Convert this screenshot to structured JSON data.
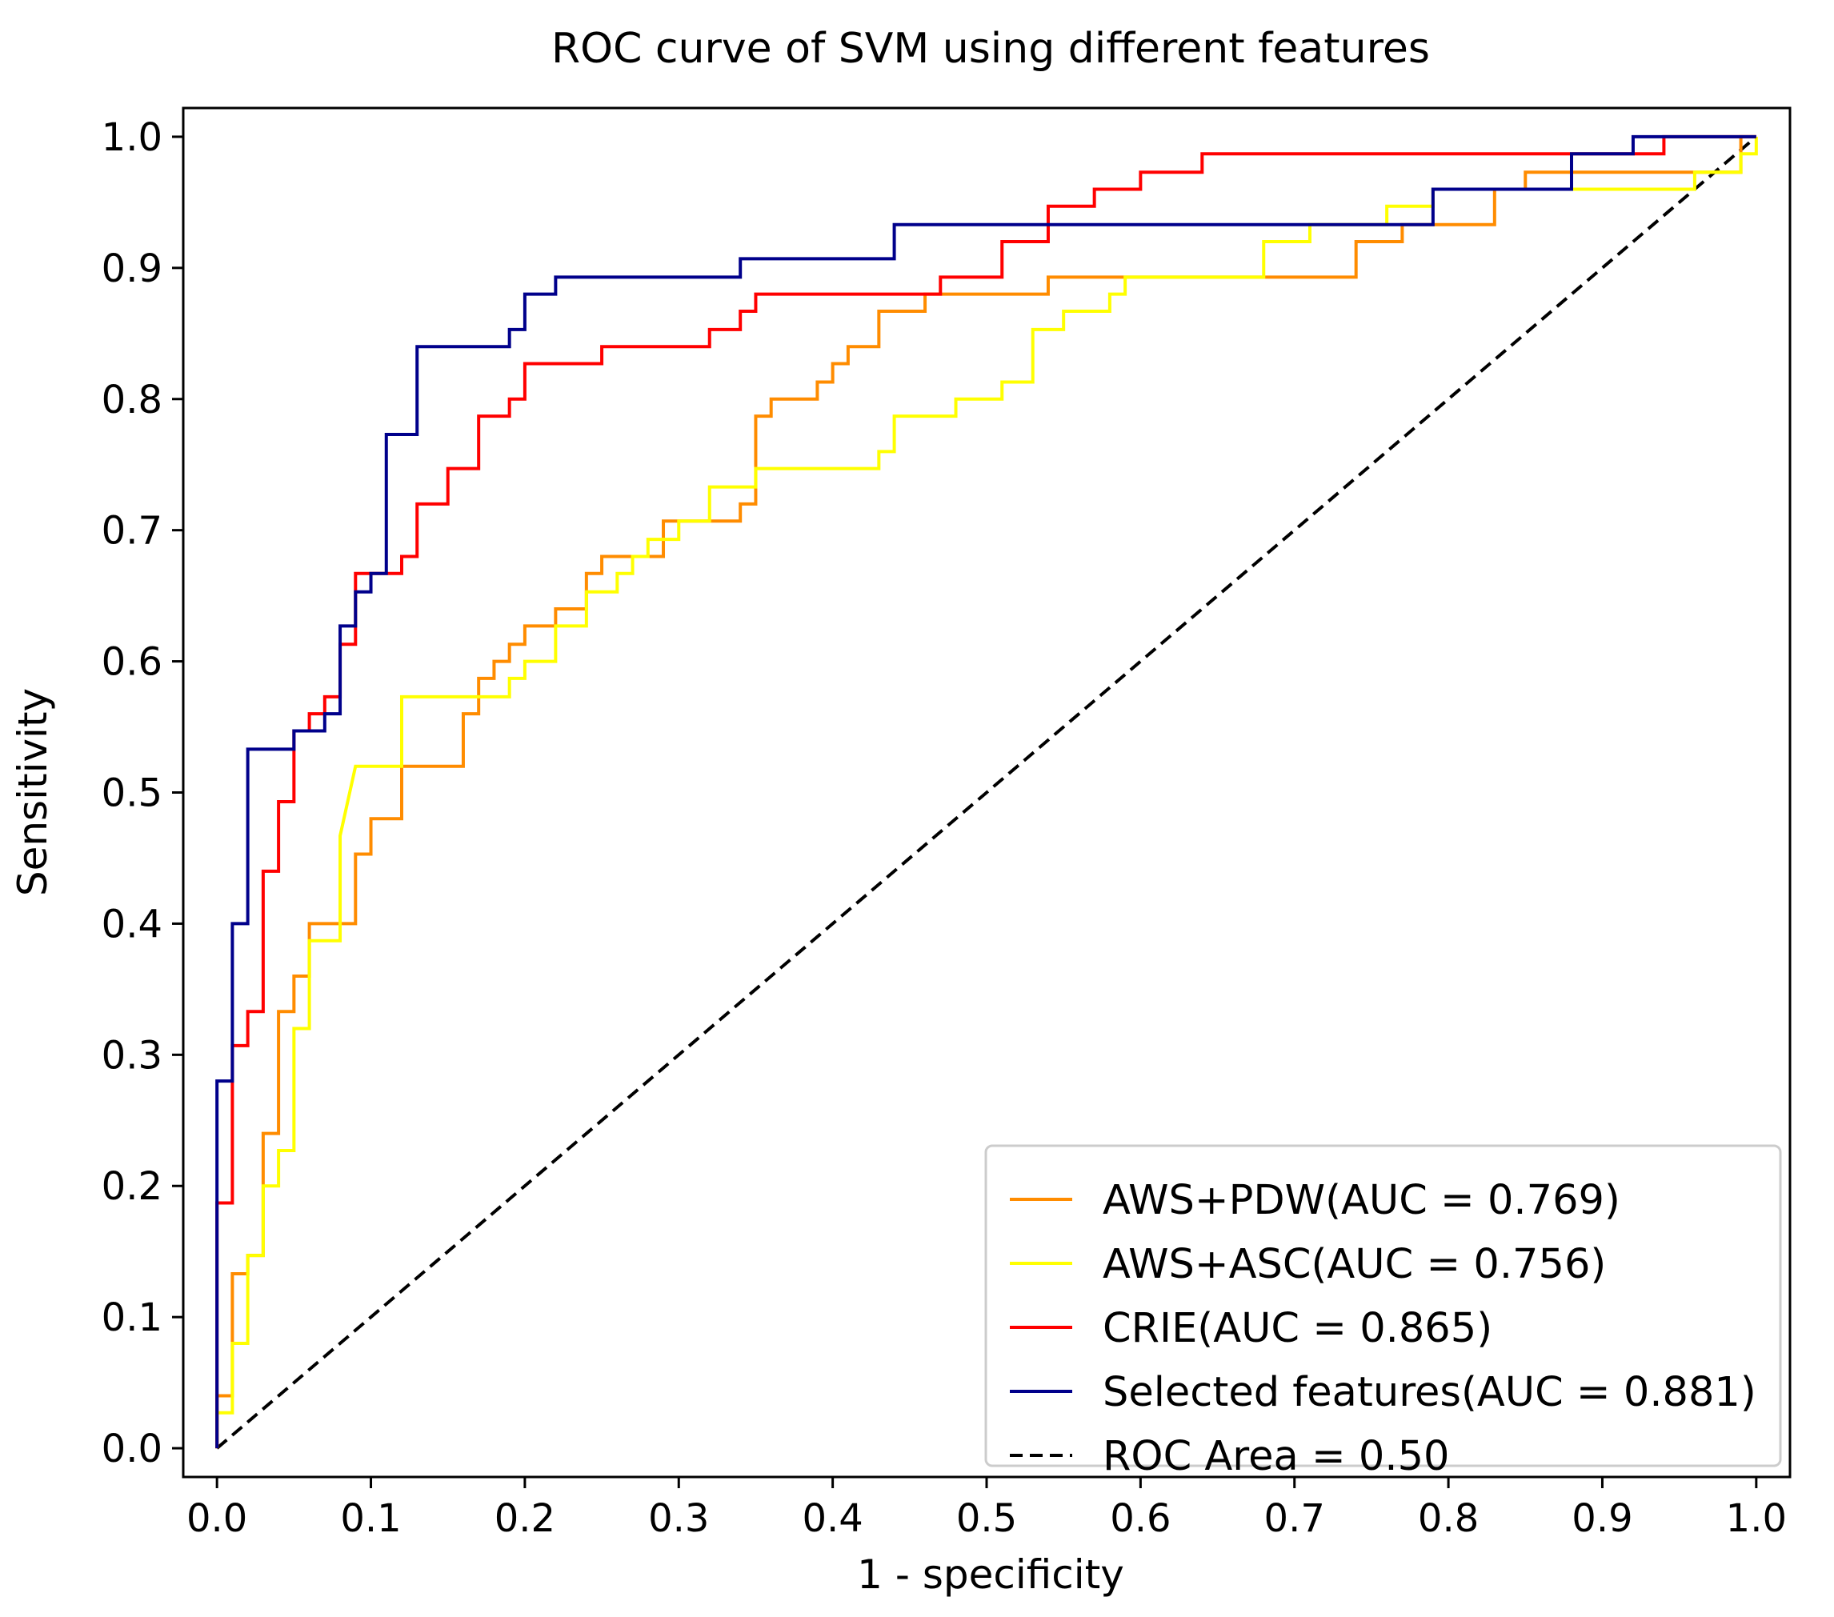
{
  "chart_data": {
    "type": "line",
    "title": "ROC curve of SVM using different features",
    "xlabel": "1 - specificity",
    "ylabel": "Sensitivity",
    "xlim": [
      0.0,
      1.0
    ],
    "ylim": [
      0.0,
      1.0
    ],
    "xticks": [
      "0.0",
      "0.1",
      "0.2",
      "0.3",
      "0.4",
      "0.5",
      "0.6",
      "0.7",
      "0.8",
      "0.9",
      "1.0"
    ],
    "yticks": [
      "0.0",
      "0.1",
      "0.2",
      "0.3",
      "0.4",
      "0.5",
      "0.6",
      "0.7",
      "0.8",
      "0.9",
      "1.0"
    ],
    "grid": false,
    "legend_position": "lower-right",
    "series": [
      {
        "name": "AWS+PDW(AUC = 0.769)",
        "color": "#ff8c00",
        "style": "solid",
        "x": [
          0,
          0,
          0.01,
          0.01,
          0.02,
          0.02,
          0.03,
          0.03,
          0.04,
          0.04,
          0.05,
          0.05,
          0.06,
          0.06,
          0.09,
          0.09,
          0.1,
          0.1,
          0.12,
          0.12,
          0.16,
          0.16,
          0.17,
          0.17,
          0.18,
          0.18,
          0.19,
          0.19,
          0.2,
          0.2,
          0.22,
          0.22,
          0.24,
          0.24,
          0.25,
          0.25,
          0.29,
          0.29,
          0.34,
          0.34,
          0.35,
          0.35,
          0.36,
          0.36,
          0.39,
          0.39,
          0.4,
          0.4,
          0.41,
          0.41,
          0.43,
          0.43,
          0.46,
          0.46,
          0.54,
          0.54,
          0.6,
          0.6,
          0.74,
          0.74,
          0.77,
          0.77,
          0.83,
          0.83,
          0.85,
          0.85,
          0.99,
          0.99,
          1.0
        ],
        "y": [
          0,
          0.04,
          0.04,
          0.133,
          0.133,
          0.147,
          0.147,
          0.24,
          0.24,
          0.333,
          0.333,
          0.36,
          0.36,
          0.4,
          0.4,
          0.453,
          0.453,
          0.48,
          0.48,
          0.52,
          0.52,
          0.56,
          0.56,
          0.587,
          0.587,
          0.6,
          0.6,
          0.613,
          0.613,
          0.627,
          0.627,
          0.64,
          0.64,
          0.667,
          0.667,
          0.68,
          0.68,
          0.707,
          0.707,
          0.72,
          0.72,
          0.787,
          0.787,
          0.8,
          0.8,
          0.813,
          0.813,
          0.827,
          0.827,
          0.84,
          0.84,
          0.867,
          0.867,
          0.88,
          0.88,
          0.893,
          0.893,
          0.893,
          0.893,
          0.92,
          0.92,
          0.933,
          0.933,
          0.96,
          0.96,
          0.973,
          0.973,
          1.0,
          1.0
        ]
      },
      {
        "name": "AWS+ASC(AUC = 0.756)",
        "color": "#ffff00",
        "style": "solid",
        "x": [
          0,
          0,
          0.01,
          0.01,
          0.02,
          0.02,
          0.03,
          0.03,
          0.04,
          0.04,
          0.05,
          0.05,
          0.06,
          0.06,
          0.08,
          0.08,
          0.09,
          0.12,
          0.12,
          0.19,
          0.19,
          0.2,
          0.2,
          0.22,
          0.22,
          0.24,
          0.24,
          0.26,
          0.26,
          0.27,
          0.27,
          0.28,
          0.28,
          0.3,
          0.3,
          0.32,
          0.32,
          0.35,
          0.35,
          0.43,
          0.43,
          0.44,
          0.44,
          0.48,
          0.48,
          0.51,
          0.51,
          0.53,
          0.53,
          0.55,
          0.55,
          0.58,
          0.58,
          0.59,
          0.59,
          0.6,
          0.6,
          0.68,
          0.68,
          0.71,
          0.71,
          0.76,
          0.76,
          0.79,
          0.79,
          0.96,
          0.96,
          0.99,
          0.99,
          1.0,
          1.0
        ],
        "y": [
          0,
          0.027,
          0.027,
          0.08,
          0.08,
          0.147,
          0.147,
          0.2,
          0.2,
          0.227,
          0.227,
          0.32,
          0.32,
          0.387,
          0.387,
          0.467,
          0.52,
          0.52,
          0.573,
          0.573,
          0.587,
          0.587,
          0.6,
          0.6,
          0.627,
          0.627,
          0.653,
          0.653,
          0.667,
          0.667,
          0.68,
          0.68,
          0.693,
          0.693,
          0.707,
          0.707,
          0.733,
          0.733,
          0.747,
          0.747,
          0.76,
          0.76,
          0.787,
          0.787,
          0.8,
          0.8,
          0.813,
          0.813,
          0.853,
          0.853,
          0.867,
          0.867,
          0.88,
          0.88,
          0.893,
          0.893,
          0.893,
          0.893,
          0.92,
          0.92,
          0.933,
          0.933,
          0.947,
          0.947,
          0.96,
          0.96,
          0.973,
          0.973,
          0.987,
          0.987,
          1.0
        ]
      },
      {
        "name": "CRIE(AUC = 0.865)",
        "color": "#ff0000",
        "style": "solid",
        "x": [
          0,
          0,
          0.01,
          0.01,
          0.02,
          0.02,
          0.03,
          0.03,
          0.04,
          0.04,
          0.05,
          0.05,
          0.06,
          0.06,
          0.07,
          0.07,
          0.08,
          0.08,
          0.09,
          0.09,
          0.11,
          0.11,
          0.12,
          0.12,
          0.13,
          0.13,
          0.15,
          0.15,
          0.17,
          0.17,
          0.19,
          0.19,
          0.2,
          0.2,
          0.25,
          0.25,
          0.32,
          0.32,
          0.34,
          0.34,
          0.35,
          0.35,
          0.47,
          0.47,
          0.51,
          0.51,
          0.54,
          0.54,
          0.57,
          0.57,
          0.6,
          0.6,
          0.64,
          0.64,
          0.74,
          0.74,
          0.94,
          0.94,
          1.0
        ],
        "y": [
          0,
          0.187,
          0.187,
          0.307,
          0.307,
          0.333,
          0.333,
          0.44,
          0.44,
          0.493,
          0.493,
          0.547,
          0.547,
          0.56,
          0.56,
          0.573,
          0.573,
          0.613,
          0.613,
          0.667,
          0.667,
          0.667,
          0.667,
          0.68,
          0.68,
          0.72,
          0.72,
          0.747,
          0.747,
          0.787,
          0.787,
          0.8,
          0.8,
          0.827,
          0.827,
          0.84,
          0.84,
          0.853,
          0.853,
          0.867,
          0.867,
          0.88,
          0.88,
          0.893,
          0.893,
          0.92,
          0.92,
          0.947,
          0.947,
          0.96,
          0.96,
          0.973,
          0.973,
          0.987,
          0.987,
          0.987,
          0.987,
          1.0,
          1.0
        ]
      },
      {
        "name": "Selected features(AUC = 0.881)",
        "color": "#00008b",
        "style": "solid",
        "x": [
          0,
          0,
          0.01,
          0.01,
          0.02,
          0.02,
          0.05,
          0.05,
          0.07,
          0.07,
          0.08,
          0.08,
          0.09,
          0.09,
          0.1,
          0.1,
          0.11,
          0.11,
          0.13,
          0.13,
          0.19,
          0.19,
          0.2,
          0.2,
          0.22,
          0.22,
          0.34,
          0.34,
          0.44,
          0.44,
          0.79,
          0.79,
          0.88,
          0.88,
          0.92,
          0.92,
          1.0
        ],
        "y": [
          0,
          0.28,
          0.28,
          0.4,
          0.4,
          0.533,
          0.533,
          0.547,
          0.547,
          0.56,
          0.56,
          0.627,
          0.627,
          0.653,
          0.653,
          0.667,
          0.667,
          0.773,
          0.773,
          0.84,
          0.84,
          0.853,
          0.853,
          0.88,
          0.88,
          0.893,
          0.893,
          0.907,
          0.907,
          0.933,
          0.933,
          0.96,
          0.96,
          0.987,
          0.987,
          1.0,
          1.0
        ]
      },
      {
        "name": "ROC Area = 0.50",
        "color": "#000000",
        "style": "dashed",
        "x": [
          0,
          1
        ],
        "y": [
          0,
          1
        ]
      }
    ]
  }
}
